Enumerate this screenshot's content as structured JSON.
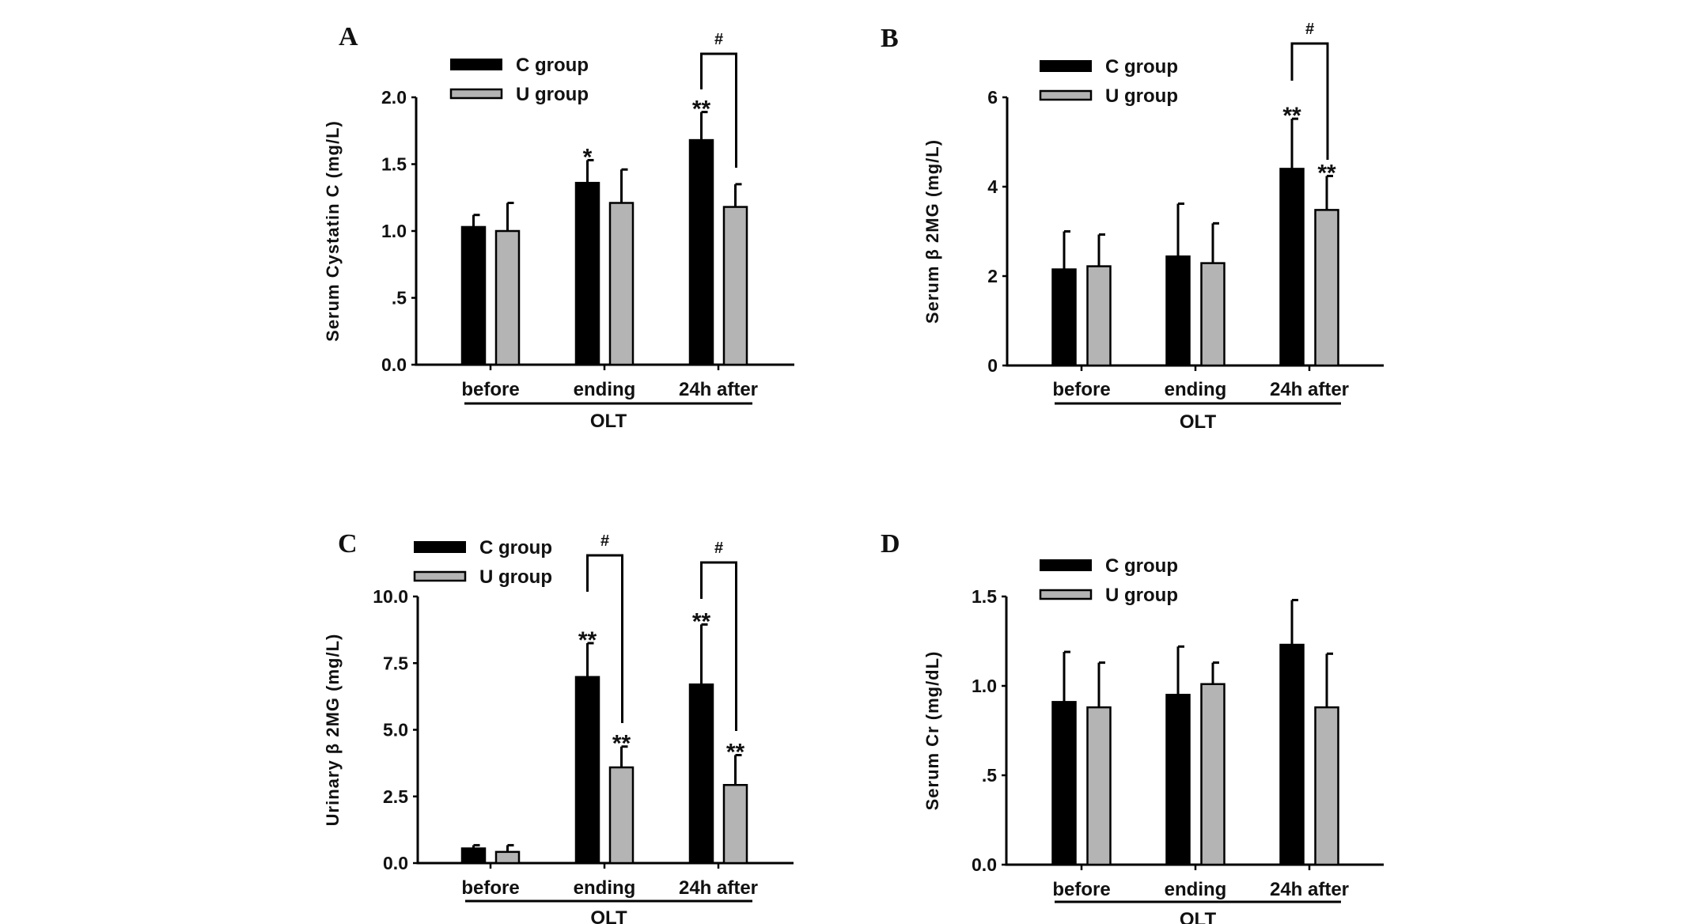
{
  "figure": {
    "legend": {
      "c_label": "C group",
      "u_label": "U group"
    },
    "group_caption": "OLT",
    "colors": {
      "c_group": "#000000",
      "u_group": "#b4b4b4",
      "stroke": "#000000"
    }
  },
  "chart_data": [
    {
      "panel": "A",
      "type": "bar",
      "title": "",
      "xlabel": "OLT",
      "ylabel": "Serum Cystatin C (mg/L)",
      "ylim": [
        0,
        2.0
      ],
      "yticks": [
        0,
        0.5,
        1.0,
        1.5,
        2.0
      ],
      "ytick_labels": [
        "0.0",
        ".5",
        "1.0",
        "1.5",
        "2.0"
      ],
      "categories": [
        "before",
        "ending",
        "24h after"
      ],
      "legend": "top-left",
      "grid": false,
      "series": [
        {
          "name": "C group",
          "values": [
            1.03,
            1.36,
            1.68
          ],
          "error_upper": [
            1.12,
            1.53,
            1.89
          ],
          "significance": [
            "",
            "*",
            "**"
          ]
        },
        {
          "name": "U group",
          "values": [
            1.0,
            1.21,
            1.18
          ],
          "error_upper": [
            1.21,
            1.46,
            1.35
          ],
          "significance": [
            "",
            "",
            ""
          ]
        }
      ],
      "comparisons": [
        {
          "category": "24h after",
          "label": "#"
        }
      ]
    },
    {
      "panel": "B",
      "type": "bar",
      "title": "",
      "xlabel": "OLT",
      "ylabel": "Serum β 2MG (mg/L)",
      "ylim": [
        0,
        6
      ],
      "yticks": [
        0,
        2,
        4,
        6
      ],
      "ytick_labels": [
        "0",
        "2",
        "4",
        "6"
      ],
      "categories": [
        "before",
        "ending",
        "24h after"
      ],
      "legend": "top-left",
      "grid": false,
      "series": [
        {
          "name": "C group",
          "values": [
            2.15,
            2.44,
            4.4
          ],
          "error_upper": [
            3.0,
            3.62,
            5.52
          ],
          "significance": [
            "",
            "",
            "**"
          ]
        },
        {
          "name": "U group",
          "values": [
            2.22,
            2.29,
            3.48
          ],
          "error_upper": [
            2.93,
            3.18,
            4.24
          ],
          "significance": [
            "",
            "",
            "**"
          ]
        }
      ],
      "comparisons": [
        {
          "category": "24h after",
          "label": "#"
        }
      ]
    },
    {
      "panel": "C",
      "type": "bar",
      "title": "",
      "xlabel": "OLT",
      "ylabel": "Urinary β 2MG (mg/L)",
      "ylim": [
        0,
        10.0
      ],
      "yticks": [
        0,
        2.5,
        5.0,
        7.5,
        10.0
      ],
      "ytick_labels": [
        "0.0",
        "2.5",
        "5.0",
        "7.5",
        "10.0"
      ],
      "categories": [
        "before",
        "ending",
        "24h after"
      ],
      "legend": "top-left",
      "grid": false,
      "series": [
        {
          "name": "C group",
          "values": [
            0.55,
            6.98,
            6.7
          ],
          "error_upper": [
            0.67,
            8.25,
            8.95
          ],
          "significance": [
            "",
            "**",
            "**"
          ]
        },
        {
          "name": "U group",
          "values": [
            0.42,
            3.59,
            2.93
          ],
          "error_upper": [
            0.67,
            4.37,
            4.05
          ],
          "significance": [
            "",
            "**",
            "**"
          ]
        }
      ],
      "comparisons": [
        {
          "category": "ending",
          "label": "#"
        },
        {
          "category": "24h after",
          "label": "#"
        }
      ]
    },
    {
      "panel": "D",
      "type": "bar",
      "title": "",
      "xlabel": "OLT",
      "ylabel": "Serum  Cr (mg/dL)",
      "ylim": [
        0,
        1.5
      ],
      "yticks": [
        0,
        0.5,
        1.0,
        1.5
      ],
      "ytick_labels": [
        "0.0",
        ".5",
        "1.0",
        "1.5"
      ],
      "categories": [
        "before",
        "ending",
        "24h after"
      ],
      "legend": "top-left",
      "grid": false,
      "series": [
        {
          "name": "C group",
          "values": [
            0.91,
            0.95,
            1.23
          ],
          "error_upper": [
            1.19,
            1.22,
            1.48
          ],
          "significance": [
            "",
            "",
            ""
          ]
        },
        {
          "name": "U group",
          "values": [
            0.88,
            1.01,
            0.88
          ],
          "error_upper": [
            1.13,
            1.13,
            1.18
          ],
          "significance": [
            "",
            "",
            ""
          ]
        }
      ],
      "comparisons": []
    }
  ]
}
